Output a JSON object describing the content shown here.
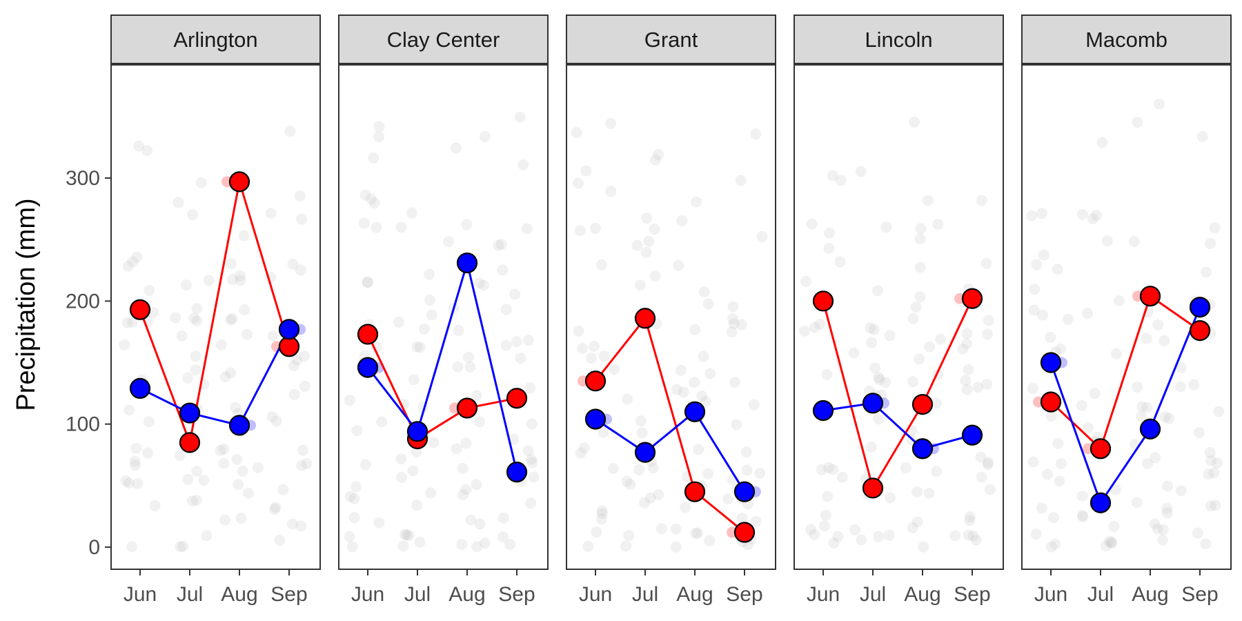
{
  "chart_data": {
    "type": "line",
    "facet_labels": [
      "Arlington",
      "Clay Center",
      "Grant",
      "Lincoln",
      "Macomb"
    ],
    "categories": [
      "Jun",
      "Jul",
      "Aug",
      "Sep"
    ],
    "xlabel": "",
    "ylabel": "Precipitation (mm)",
    "ylim": [
      -18,
      392
    ],
    "yticks": [
      0,
      100,
      200,
      300
    ],
    "grid": false,
    "legend": "none",
    "colors": {
      "red_series": "#ff0000",
      "blue_series": "#0000ff",
      "background_points": "#bdbdbd",
      "strip_fill": "#d9d9d9",
      "panel_border": "#333333"
    },
    "panels": [
      {
        "facet": "Arlington",
        "series": [
          {
            "color": "red",
            "values": [
              193,
              85,
              297,
              163
            ]
          },
          {
            "color": "blue",
            "values": [
              129,
              109,
              99,
              177
            ]
          }
        ],
        "faded_points": [
          {
            "color": "red",
            "x": "Aug",
            "y": 297
          },
          {
            "color": "red",
            "x": "Sep",
            "y": 163
          },
          {
            "color": "blue",
            "x": "Aug",
            "y": 99
          },
          {
            "color": "blue",
            "x": "Sep",
            "y": 177
          }
        ]
      },
      {
        "facet": "Clay Center",
        "series": [
          {
            "color": "red",
            "values": [
              173,
              88,
              113,
              121
            ]
          },
          {
            "color": "blue",
            "values": [
              146,
              94,
              231,
              61
            ]
          }
        ],
        "faded_points": [
          {
            "color": "red",
            "x": "Aug",
            "y": 113
          },
          {
            "color": "blue",
            "x": "Jun",
            "y": 146
          }
        ]
      },
      {
        "facet": "Grant",
        "series": [
          {
            "color": "red",
            "values": [
              135,
              186,
              45,
              12
            ]
          },
          {
            "color": "blue",
            "values": [
              104,
              77,
              110,
              45
            ]
          }
        ],
        "faded_points": [
          {
            "color": "red",
            "x": "Jun",
            "y": 135
          },
          {
            "color": "red",
            "x": "Sep",
            "y": 12
          },
          {
            "color": "blue",
            "x": "Jun",
            "y": 104
          },
          {
            "color": "blue",
            "x": "Sep",
            "y": 45
          }
        ]
      },
      {
        "facet": "Lincoln",
        "series": [
          {
            "color": "red",
            "values": [
              200,
              48,
              116,
              202
            ]
          },
          {
            "color": "blue",
            "values": [
              111,
              117,
              80,
              91
            ]
          }
        ],
        "faded_points": [
          {
            "color": "red",
            "x": "Sep",
            "y": 202
          },
          {
            "color": "blue",
            "x": "Jul",
            "y": 117
          },
          {
            "color": "blue",
            "x": "Aug",
            "y": 80
          }
        ]
      },
      {
        "facet": "Macomb",
        "series": [
          {
            "color": "red",
            "values": [
              118,
              80,
              204,
              176
            ]
          },
          {
            "color": "blue",
            "values": [
              150,
              36,
              96,
              195
            ]
          }
        ],
        "faded_points": [
          {
            "color": "red",
            "x": "Jun",
            "y": 118
          },
          {
            "color": "red",
            "x": "Jul",
            "y": 80
          },
          {
            "color": "red",
            "x": "Aug",
            "y": 204
          },
          {
            "color": "blue",
            "x": "Jun",
            "y": 150
          }
        ]
      }
    ],
    "background_points_per_month": 24,
    "background_points_range": [
      0,
      380
    ]
  }
}
